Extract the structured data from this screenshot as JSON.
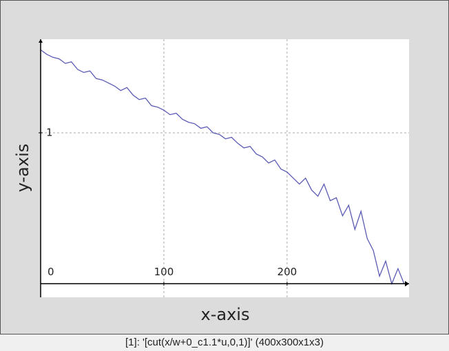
{
  "chart_data": {
    "type": "line",
    "x_label": "x-axis",
    "y_label": "y-axis",
    "caption": "[1]: '[cut(x/w+0_c1.1*u,0,1)]' (400x300x1x3)",
    "x": [
      0,
      5,
      10,
      15,
      20,
      25,
      30,
      35,
      40,
      45,
      50,
      55,
      60,
      65,
      70,
      75,
      80,
      85,
      90,
      95,
      100,
      105,
      110,
      115,
      120,
      125,
      130,
      135,
      140,
      145,
      150,
      155,
      160,
      165,
      170,
      175,
      180,
      185,
      190,
      195,
      200,
      205,
      210,
      215,
      220,
      225,
      230,
      235,
      240,
      245,
      250,
      255,
      260,
      265,
      270,
      275,
      280,
      285,
      290,
      295
    ],
    "series": [
      {
        "color": "#5a5ab4",
        "values": [
          1.55,
          1.52,
          1.5,
          1.49,
          1.46,
          1.47,
          1.42,
          1.4,
          1.41,
          1.36,
          1.35,
          1.33,
          1.31,
          1.28,
          1.3,
          1.25,
          1.22,
          1.23,
          1.18,
          1.17,
          1.15,
          1.12,
          1.13,
          1.09,
          1.07,
          1.06,
          1.03,
          1.04,
          1.0,
          0.99,
          0.96,
          0.97,
          0.93,
          0.9,
          0.91,
          0.86,
          0.84,
          0.8,
          0.82,
          0.76,
          0.74,
          0.7,
          0.66,
          0.7,
          0.62,
          0.58,
          0.66,
          0.55,
          0.57,
          0.45,
          0.52,
          0.36,
          0.48,
          0.3,
          0.22,
          0.05,
          0.15,
          0.0,
          0.1,
          0.0
        ]
      }
    ],
    "xlim": [
      0,
      299
    ],
    "ylim": [
      -0.09,
      1.62
    ],
    "xticks": [
      0,
      100,
      200
    ],
    "yticks": [
      1
    ],
    "grid": true
  }
}
